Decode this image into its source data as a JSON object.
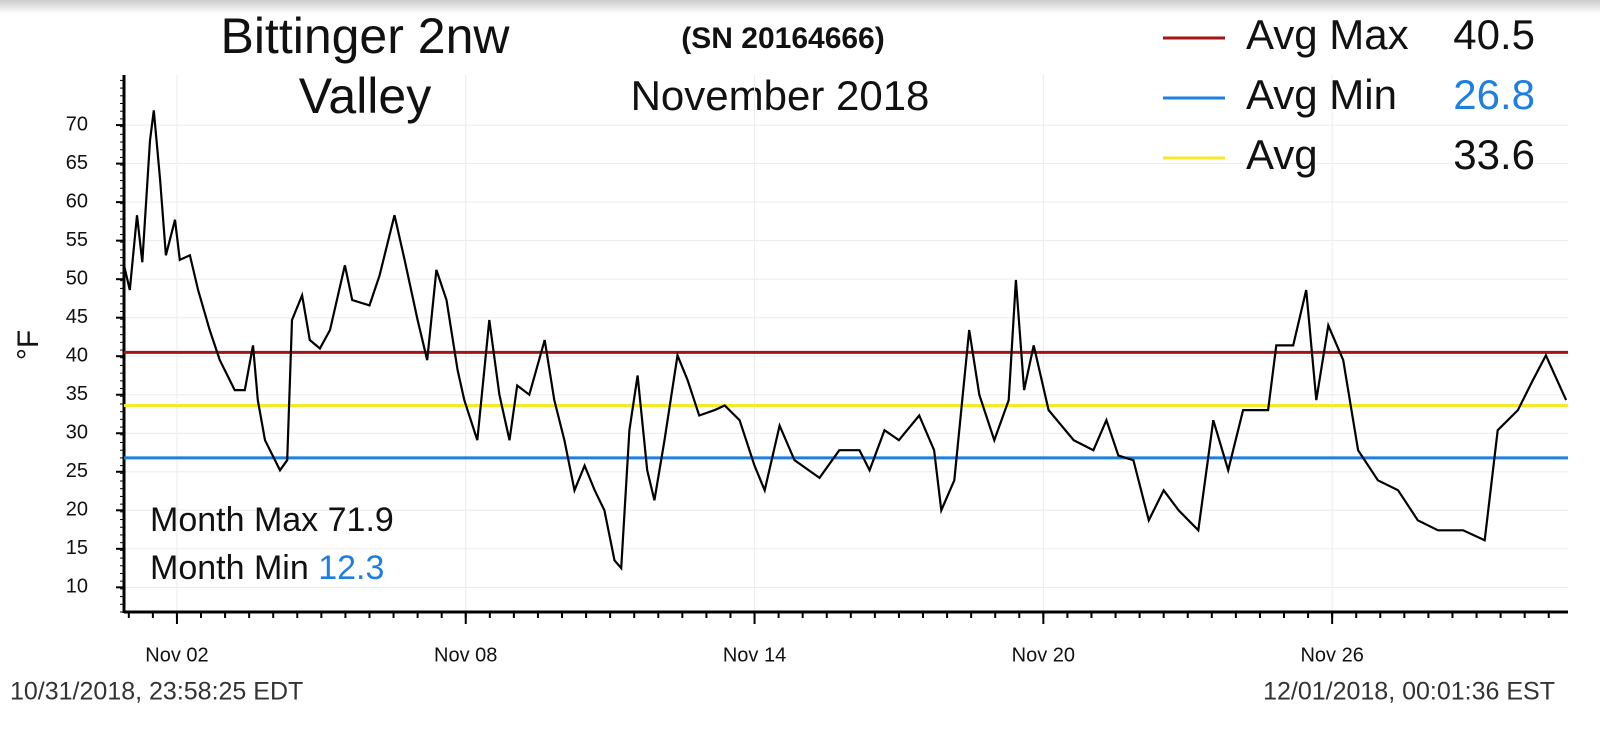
{
  "chart_data": {
    "type": "line",
    "title": "Bittinger 2nw Valley",
    "subtitle": "(SN 20164666)",
    "period": "November 2018",
    "ylabel": "°F",
    "color": "#000000",
    "grid": true,
    "xlim": [
      0.9,
      30.9
    ],
    "ylim": [
      6.8,
      76.5
    ],
    "yticks": [
      10,
      15,
      20,
      25,
      30,
      35,
      40,
      45,
      50,
      55,
      60,
      65,
      70
    ],
    "xticks": [
      {
        "value": 2,
        "label": "Nov 02"
      },
      {
        "value": 8,
        "label": "Nov 08"
      },
      {
        "value": 14,
        "label": "Nov 14"
      },
      {
        "value": 20,
        "label": "Nov 20"
      },
      {
        "value": 26,
        "label": "Nov 26"
      }
    ],
    "x": [
      0.9,
      1.02,
      1.17,
      1.28,
      1.44,
      1.52,
      1.65,
      1.77,
      1.96,
      2.06,
      2.27,
      2.44,
      2.68,
      2.89,
      3.2,
      3.41,
      3.58,
      3.68,
      3.83,
      4.14,
      4.29,
      4.39,
      4.6,
      4.76,
      4.97,
      5.18,
      5.49,
      5.64,
      6.0,
      6.21,
      6.52,
      6.73,
      7.0,
      7.2,
      7.39,
      7.6,
      7.83,
      7.97,
      8.24,
      8.49,
      8.7,
      8.91,
      9.07,
      9.32,
      9.64,
      9.84,
      10.05,
      10.26,
      10.47,
      10.68,
      10.88,
      11.09,
      11.23,
      11.4,
      11.57,
      11.77,
      11.92,
      12.13,
      12.4,
      12.61,
      12.85,
      13.17,
      13.38,
      13.69,
      14.0,
      14.21,
      14.52,
      14.83,
      15.35,
      15.76,
      16.18,
      16.39,
      16.7,
      17.0,
      17.42,
      17.73,
      17.88,
      18.15,
      18.46,
      18.67,
      18.98,
      19.28,
      19.43,
      19.6,
      19.8,
      20.11,
      20.63,
      21.04,
      21.31,
      21.56,
      21.87,
      22.19,
      22.5,
      22.81,
      23.22,
      23.53,
      23.84,
      24.15,
      24.67,
      24.84,
      25.19,
      25.46,
      25.67,
      25.92,
      26.23,
      26.54,
      26.95,
      27.37,
      27.78,
      28.2,
      28.72,
      29.17,
      29.44,
      29.86,
      30.17,
      30.44,
      30.86
    ],
    "values": [
      51.8,
      48.6,
      58.3,
      52.2,
      68,
      71.9,
      62.9,
      53.1,
      57.7,
      52.5,
      53.1,
      48.6,
      43.4,
      39.5,
      35.6,
      35.6,
      41.4,
      34.3,
      29.1,
      25.2,
      26.5,
      44.7,
      47.9,
      42.1,
      41,
      43.4,
      51.8,
      47.3,
      46.6,
      50.5,
      58.3,
      52.5,
      44.7,
      39.5,
      51.2,
      47.3,
      38.2,
      34.3,
      29.1,
      44.7,
      35,
      29.1,
      36.2,
      35,
      42.1,
      34.3,
      29.1,
      22.6,
      25.8,
      22.6,
      20,
      13.5,
      12.5,
      30.4,
      37.5,
      25.2,
      21.3,
      29.1,
      40.1,
      36.9,
      32.3,
      33,
      33.6,
      31.7,
      25.8,
      22.6,
      31,
      26.5,
      24.2,
      27.8,
      27.8,
      25.2,
      30.4,
      29.1,
      32.3,
      27.8,
      20,
      23.9,
      43.4,
      35,
      29.1,
      34.3,
      49.9,
      35.6,
      41.4,
      33,
      29.1,
      27.8,
      31.7,
      27.1,
      26.5,
      18.7,
      22.6,
      20,
      17.4,
      31.7,
      25.2,
      33,
      33,
      41.4,
      41.4,
      48.6,
      34.3,
      44,
      39.5,
      27.8,
      23.9,
      22.6,
      18.7,
      17.4,
      17.4,
      16.1,
      30.4,
      33,
      36.9,
      40.1,
      34.3
    ],
    "reference_lines": [
      {
        "name": "Avg Max",
        "value": 40.5,
        "color": "#a51515"
      },
      {
        "name": "Avg Min",
        "value": 26.8,
        "color": "#1f7fe0"
      },
      {
        "name": "Avg",
        "value": 33.6,
        "color": "#f2ea2a"
      }
    ],
    "month_max": {
      "label": "Month Max",
      "value": 71.9
    },
    "month_min": {
      "label": "Month Min",
      "value": 12.3
    },
    "start_time": "10/31/2018, 23:58:25 EDT",
    "end_time": "12/01/2018, 00:01:36 EST"
  }
}
